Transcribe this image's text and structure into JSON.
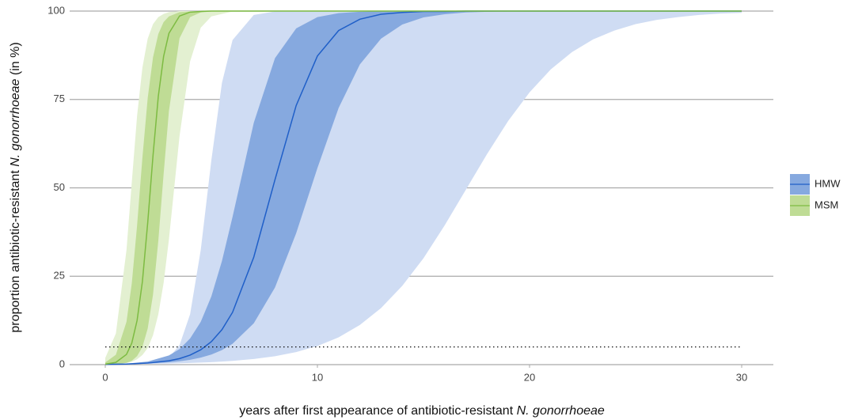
{
  "chart_data": {
    "type": "line-band",
    "x_label": [
      {
        "text": "years after first appearance of antibiotic-resistant "
      },
      {
        "text": "N. gonorrhoeae",
        "italic": true
      }
    ],
    "y_label": [
      {
        "text": "proportion antibiotic-resistant "
      },
      {
        "text": "N. gonorrhoeae",
        "italic": true
      },
      {
        "text": " (in %)"
      }
    ],
    "xlim": [
      0,
      30
    ],
    "ylim": [
      0,
      100
    ],
    "xticks": [
      0,
      10,
      20,
      30
    ],
    "yticks": [
      0,
      25,
      50,
      75,
      100
    ],
    "grid": true,
    "legend": "right",
    "hline": 5,
    "series": [
      {
        "name": "HMW",
        "color": "#1f5fc8",
        "inner_color": "#86a9df",
        "outer_color": "#cfdcf3",
        "x": [
          0,
          1,
          2,
          3,
          3.5,
          4,
          4.5,
          5,
          5.5,
          6,
          7,
          8,
          9,
          10,
          11,
          12,
          13,
          14,
          15,
          16,
          17,
          18,
          19,
          20,
          21,
          22,
          23,
          24,
          25,
          26,
          27,
          28,
          29,
          30
        ],
        "values": [
          0.07,
          0.17,
          0.44,
          1.09,
          1.71,
          2.7,
          4.2,
          6.5,
          9.9,
          14.8,
          30.4,
          52.3,
          73.3,
          87.3,
          94.5,
          97.7,
          99.1,
          99.6,
          99.9,
          99.9,
          100,
          100,
          100,
          100,
          100,
          100,
          100,
          100,
          100,
          100,
          100,
          100,
          100,
          100
        ],
        "inner_lower": [
          0.07,
          0.15,
          0.31,
          0.65,
          0.95,
          1.37,
          1.98,
          2.86,
          4.1,
          5.9,
          11.7,
          21.8,
          37.2,
          55.6,
          72.6,
          84.9,
          92.2,
          96.2,
          98.2,
          99.1,
          99.6,
          99.8,
          99.9,
          100,
          100,
          100,
          100,
          100,
          100,
          100,
          100,
          100,
          100,
          100
        ],
        "inner_upper": [
          0.1,
          0.29,
          0.88,
          2.6,
          4.4,
          7.4,
          12.1,
          19.3,
          29.3,
          41.8,
          68.4,
          86.7,
          95.1,
          98.3,
          99.4,
          99.8,
          100,
          100,
          100,
          100,
          100,
          100,
          100,
          100,
          100,
          100,
          100,
          100,
          100,
          100,
          100,
          100,
          100,
          100
        ],
        "outer_lower": [
          0.09,
          0.14,
          0.21,
          0.31,
          0.39,
          0.47,
          0.58,
          0.71,
          0.87,
          1.07,
          1.6,
          2.39,
          3.56,
          5.26,
          7.73,
          11.2,
          16.0,
          22.3,
          30.1,
          39.4,
          49.5,
          59.6,
          69.0,
          77.0,
          83.5,
          88.4,
          92.0,
          94.5,
          96.3,
          97.5,
          98.3,
          98.9,
          99.3,
          99.5
        ],
        "outer_upper": [
          0,
          0.03,
          0.25,
          2.0,
          5.5,
          14.3,
          32.4,
          57.8,
          79.7,
          91.8,
          98.9,
          99.9,
          100,
          100,
          100,
          100,
          100,
          100,
          100,
          100,
          100,
          100,
          100,
          100,
          100,
          100,
          100,
          100,
          100,
          100,
          100,
          100,
          100,
          100
        ]
      },
      {
        "name": "MSM",
        "color": "#7dbb42",
        "inner_color": "#bfdc95",
        "outer_color": "#e3f0d1",
        "x": [
          0,
          0.5,
          1,
          1.25,
          1.5,
          1.75,
          2,
          2.25,
          2.5,
          2.75,
          3,
          3.5,
          4,
          4.5,
          5,
          6,
          8,
          30
        ],
        "values": [
          0.14,
          0.64,
          2.9,
          6.1,
          12.5,
          23.5,
          40.1,
          59.1,
          75.9,
          87.2,
          93.7,
          98.6,
          99.7,
          99.9,
          100,
          100,
          100,
          100
        ],
        "inner_lower": [
          0.02,
          0.11,
          0.51,
          1.1,
          2.4,
          5.0,
          10.2,
          19.8,
          35.0,
          53.9,
          71.7,
          92.3,
          98.3,
          99.6,
          99.9,
          100,
          100,
          100
        ],
        "inner_upper": [
          0.62,
          2.8,
          12.1,
          23.0,
          39.4,
          58.5,
          75.4,
          86.9,
          93.5,
          96.9,
          98.5,
          99.7,
          99.9,
          100,
          100,
          100,
          100,
          100
        ],
        "outer_lower": [
          0.04,
          0.14,
          0.45,
          0.82,
          1.5,
          2.7,
          4.7,
          8.3,
          14.2,
          23.1,
          35.4,
          64.6,
          85.8,
          95.3,
          98.5,
          99.9,
          100,
          100
        ],
        "outer_upper": [
          1.9,
          8.8,
          32.4,
          51.6,
          70.4,
          84.0,
          92.2,
          96.3,
          98.3,
          99.2,
          99.7,
          100,
          100,
          100,
          100,
          100,
          100,
          100
        ]
      }
    ]
  }
}
